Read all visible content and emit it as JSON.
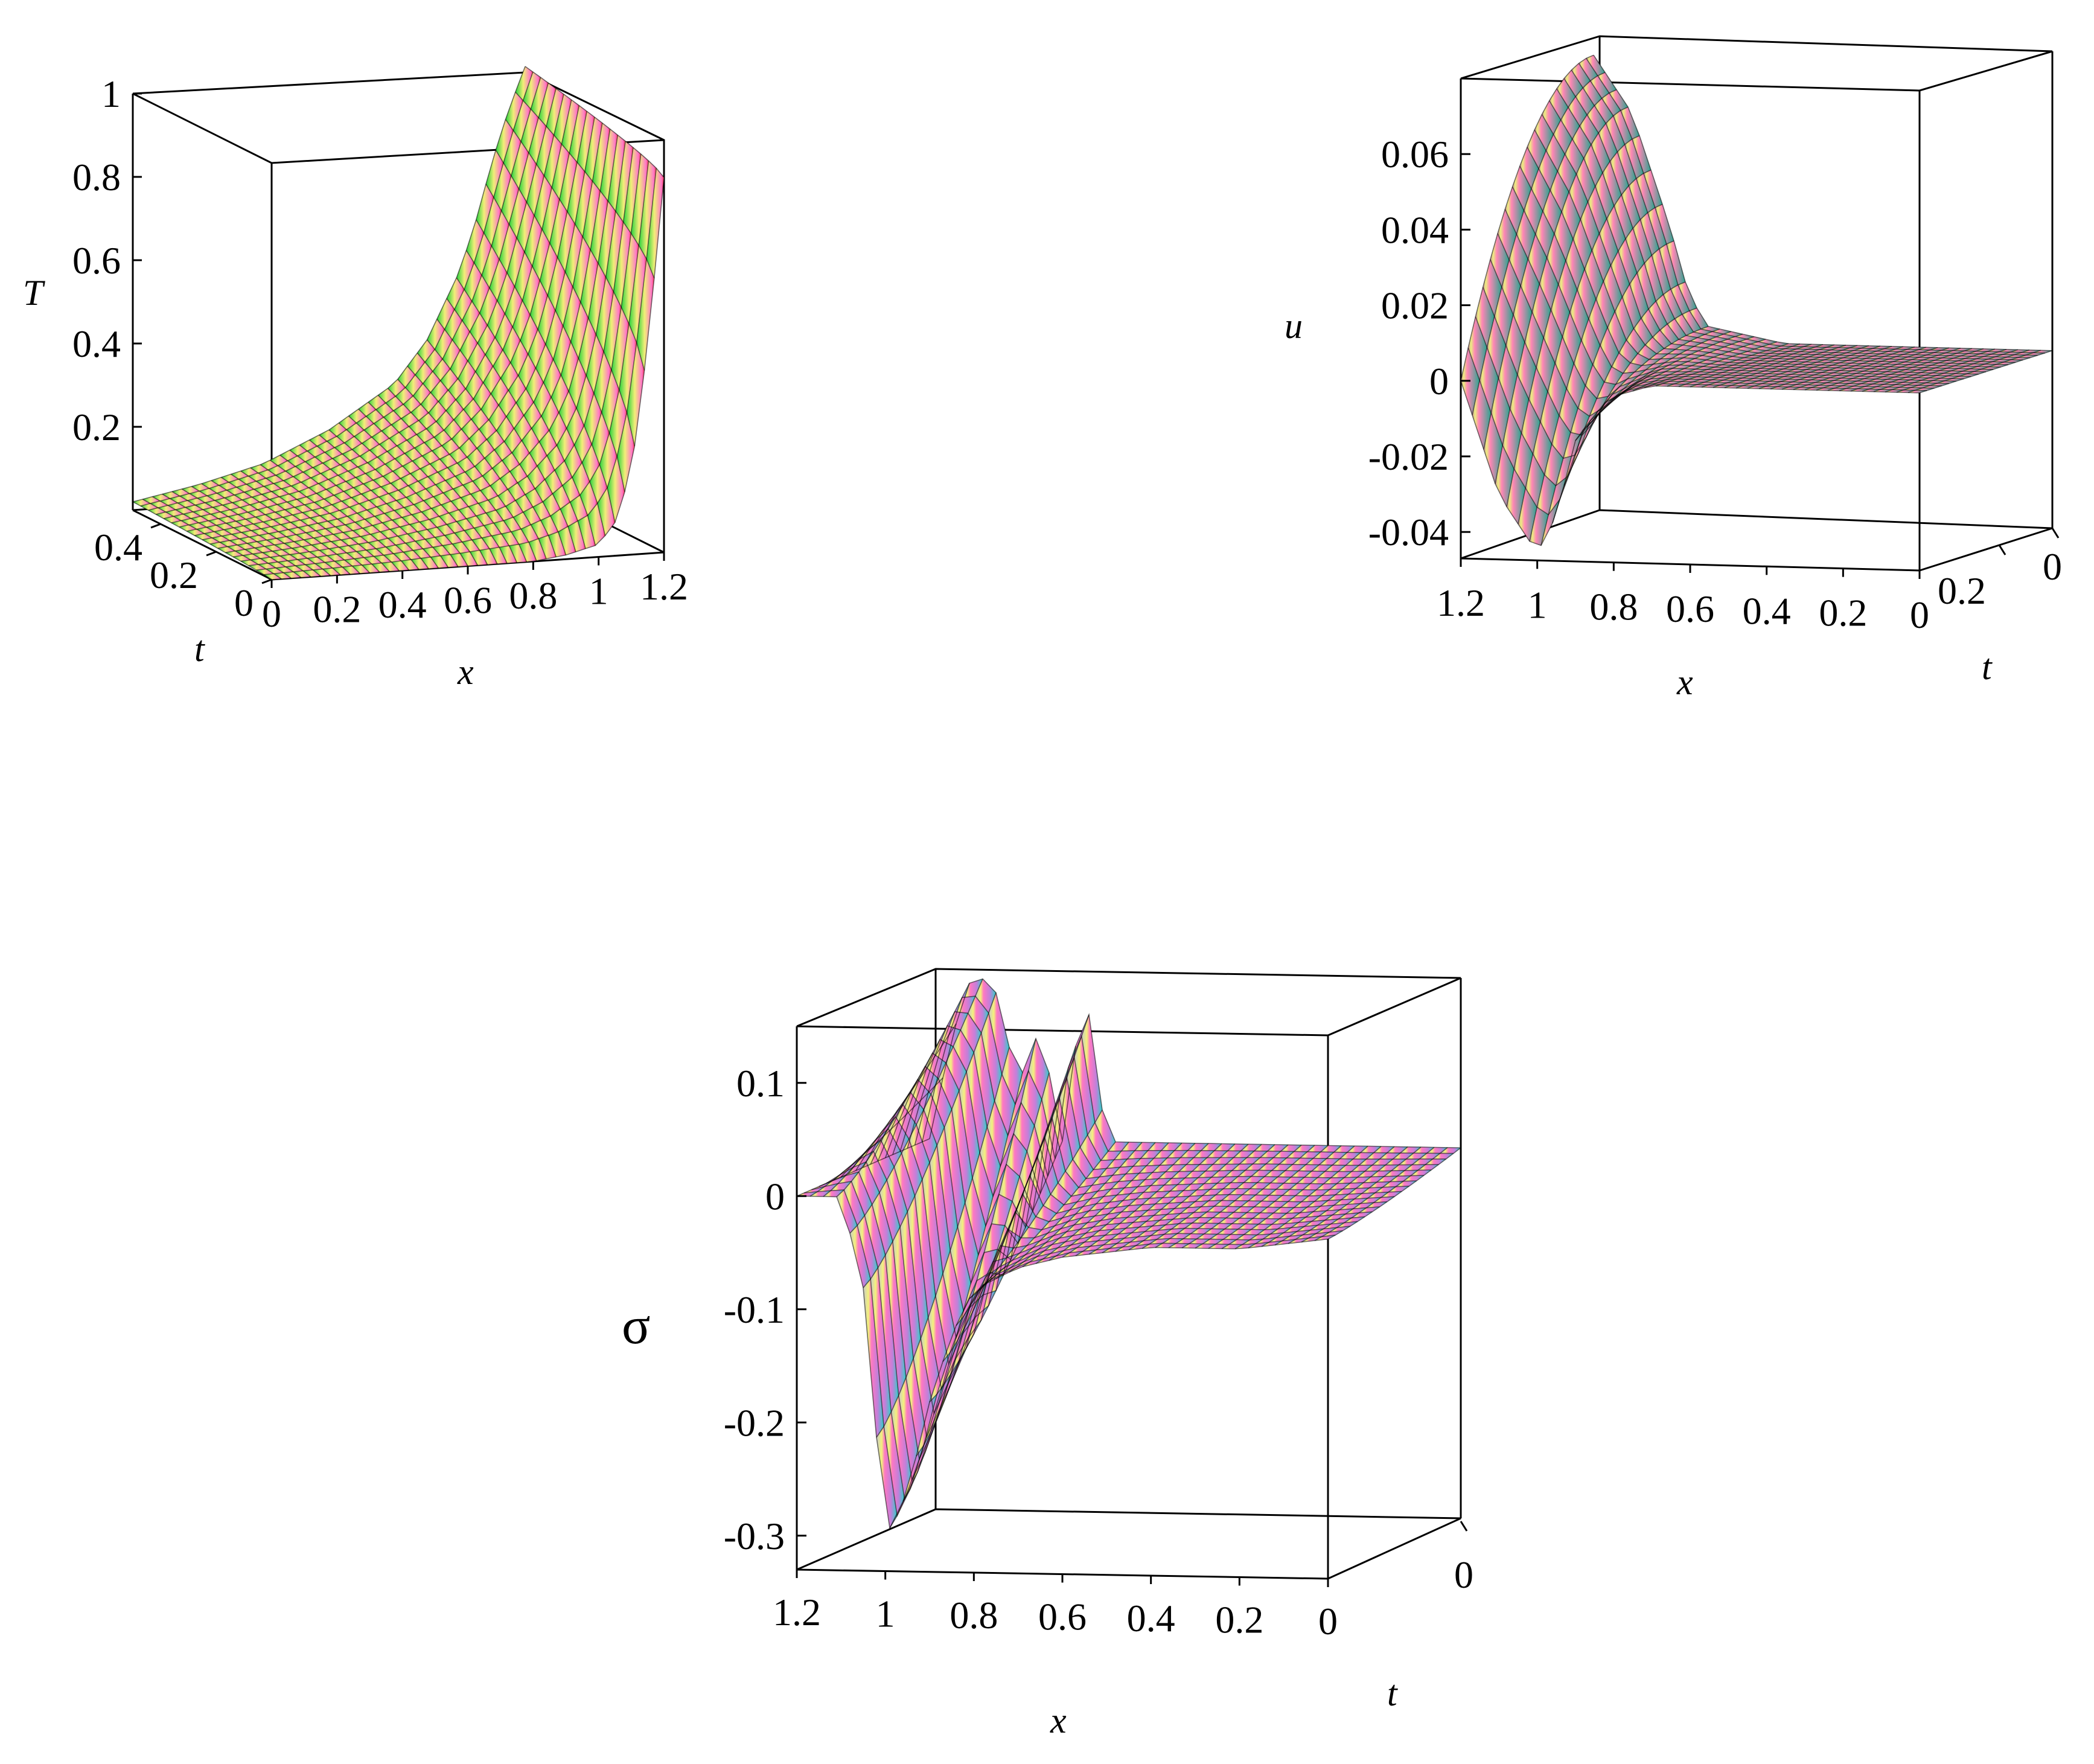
{
  "chart_data": [
    {
      "type": "surface3d",
      "id": "T",
      "zlabel": "T",
      "xlabel": "x",
      "tlabel": "t",
      "x_ticks": [
        "0",
        "0.2",
        "0.4",
        "0.6",
        "0.8",
        "1",
        "1.2"
      ],
      "t_ticks": [
        "0",
        "0.2",
        "0.4"
      ],
      "z_ticks": [
        "0.2",
        "0.4",
        "0.6",
        "0.8",
        "1"
      ],
      "xlim": [
        0,
        1.2
      ],
      "tlim": [
        0,
        0.5
      ],
      "zlim": [
        0,
        1
      ],
      "profile_x": [
        0,
        0.2,
        0.4,
        0.6,
        0.8,
        0.9,
        1.0,
        1.05,
        1.1,
        1.15,
        1.2
      ],
      "profile_back_t_max": [
        0.02,
        0.05,
        0.09,
        0.16,
        0.26,
        0.36,
        0.52,
        0.64,
        0.78,
        0.9,
        1.0
      ],
      "profile_front_t_min": [
        0.0,
        0.0,
        0.0,
        0.0,
        0.0,
        0.01,
        0.03,
        0.08,
        0.2,
        0.5,
        0.9
      ],
      "colors": [
        "#2ecc40",
        "#e8ec7a",
        "#ff7eb4",
        "#ff4f6a"
      ]
    },
    {
      "type": "surface3d",
      "id": "u",
      "zlabel": "u",
      "xlabel": "x",
      "tlabel": "t",
      "x_ticks": [
        "1.2",
        "1",
        "0.8",
        "0.6",
        "0.4",
        "0.2",
        "0"
      ],
      "t_ticks": [
        "0",
        "0.2"
      ],
      "z_ticks": [
        "-0.04",
        "-0.02",
        "0",
        "0.02",
        "0.04",
        "0.06"
      ],
      "xlim": [
        0,
        1.2
      ],
      "tlim": [
        0,
        0.5
      ],
      "zlim": [
        -0.047,
        0.08
      ],
      "profile_x": [
        1.2,
        1.1,
        1.0,
        0.95,
        0.9,
        0.8,
        0.7,
        0.6,
        0.4,
        0.2,
        0.0
      ],
      "profile_t_max": [
        0.075,
        0.06,
        0.03,
        0.012,
        0.004,
        0.002,
        0.0,
        0.0,
        0.0,
        0.0,
        0.0
      ],
      "profile_t_min": [
        0.0,
        -0.03,
        -0.045,
        -0.035,
        -0.015,
        -0.003,
        0.0,
        0.0,
        0.0,
        0.0,
        0.0
      ],
      "colors": [
        "#c98b9b",
        "#e8ec7a",
        "#ff7eb4",
        "#3fb99a"
      ]
    },
    {
      "type": "surface3d",
      "id": "sigma",
      "zlabel": "σ",
      "xlabel": "x",
      "tlabel": "t",
      "x_ticks": [
        "1.2",
        "1",
        "0.8",
        "0.6",
        "0.4",
        "0.2",
        "0"
      ],
      "t_ticks": [
        "0"
      ],
      "z_ticks": [
        "-0.3",
        "-0.2",
        "-0.1",
        "0",
        "0.1"
      ],
      "xlim": [
        0,
        1.2
      ],
      "tlim": [
        0,
        0.5
      ],
      "zlim": [
        -0.33,
        0.15
      ],
      "profile_x": [
        1.2,
        1.15,
        1.1,
        1.05,
        1.0,
        0.95,
        0.9,
        0.85,
        0.8,
        0.7,
        0.6,
        0.4,
        0.2,
        0.0
      ],
      "profile_t_max": [
        0.0,
        0.09,
        0.15,
        0.13,
        0.05,
        0.1,
        0.0,
        0.14,
        0.0,
        0.0,
        0.0,
        0.0,
        0.0,
        0.0
      ],
      "profile_t_min": [
        0.0,
        0.0,
        0.0,
        -0.08,
        -0.3,
        -0.26,
        -0.18,
        -0.12,
        -0.08,
        -0.06,
        -0.05,
        -0.04,
        -0.04,
        -0.03
      ],
      "colors": [
        "#b9b9b9",
        "#e8ec7a",
        "#ff7eb4",
        "#c07bd8",
        "#3fd0c8"
      ]
    }
  ]
}
